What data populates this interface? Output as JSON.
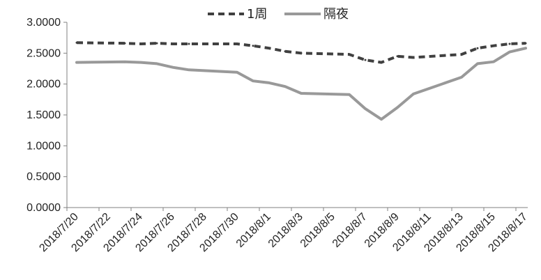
{
  "chart_data": {
    "type": "line",
    "title": "",
    "xlabel": "",
    "ylabel": "",
    "ylim": [
      0,
      3
    ],
    "y_ticks": [
      "0.0000",
      "0.5000",
      "1.0000",
      "1.5000",
      "2.0000",
      "2.5000",
      "3.0000"
    ],
    "x_tick_labels": [
      "2018/7/20",
      "2018/7/22",
      "2018/7/24",
      "2018/7/26",
      "2018/7/28",
      "2018/7/30",
      "2018/8/1",
      "2018/8/3",
      "2018/8/5",
      "2018/8/7",
      "2018/8/9",
      "2018/8/11",
      "2018/8/13",
      "2018/8/15",
      "2018/8/17"
    ],
    "categories": [
      "2018/7/20",
      "2018/7/23",
      "2018/7/24",
      "2018/7/25",
      "2018/7/26",
      "2018/7/27",
      "2018/7/30",
      "2018/7/31",
      "2018/8/1",
      "2018/8/2",
      "2018/8/3",
      "2018/8/6",
      "2018/8/7",
      "2018/8/8",
      "2018/8/9",
      "2018/8/10",
      "2018/8/13",
      "2018/8/14",
      "2018/8/15",
      "2018/8/16",
      "2018/8/17"
    ],
    "x_day_index": [
      0,
      3,
      4,
      5,
      6,
      7,
      10,
      11,
      12,
      13,
      14,
      17,
      18,
      19,
      20,
      21,
      24,
      25,
      26,
      27,
      28
    ],
    "legend_position": "top-center",
    "grid": false,
    "series": [
      {
        "name": "1周",
        "style": "dashed",
        "color": "#404040",
        "values": [
          2.67,
          2.66,
          2.65,
          2.66,
          2.65,
          2.65,
          2.65,
          2.62,
          2.58,
          2.53,
          2.5,
          2.48,
          2.39,
          2.35,
          2.45,
          2.43,
          2.48,
          2.58,
          2.62,
          2.65,
          2.66
        ]
      },
      {
        "name": "隔夜",
        "style": "solid",
        "color": "#999999",
        "values": [
          2.35,
          2.36,
          2.35,
          2.33,
          2.27,
          2.23,
          2.19,
          2.05,
          2.02,
          1.96,
          1.85,
          1.83,
          1.6,
          1.43,
          1.62,
          1.84,
          2.11,
          2.33,
          2.36,
          2.52,
          2.58
        ]
      }
    ]
  }
}
